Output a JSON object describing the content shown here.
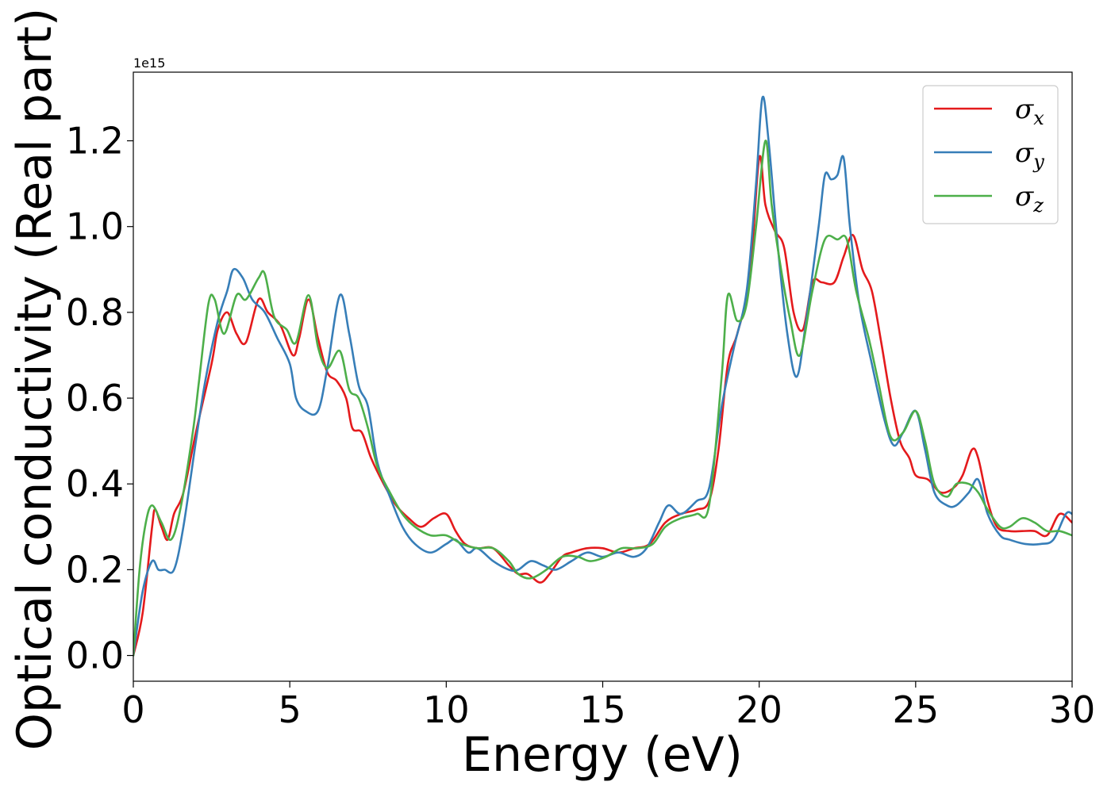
{
  "chart_data": {
    "type": "line",
    "title": "",
    "xlabel": "Energy (eV)",
    "ylabel": "Optical conductivity (Real part)",
    "y_offset_label": "1e15",
    "xlim": [
      0,
      30
    ],
    "ylim": [
      -0.06,
      1.36
    ],
    "xticks": [
      0,
      5,
      10,
      15,
      20,
      25,
      30
    ],
    "xtick_labels": [
      "0",
      "5",
      "10",
      "15",
      "20",
      "25",
      "30"
    ],
    "yticks": [
      0.0,
      0.2,
      0.4,
      0.6,
      0.8,
      1.0,
      1.2
    ],
    "ytick_labels": [
      "0.0",
      "0.2",
      "0.4",
      "0.6",
      "0.8",
      "1.0",
      "1.2"
    ],
    "grid": false,
    "legend_position": "top-right",
    "series": [
      {
        "name": "σx",
        "symbol": "σ",
        "subscript": "x",
        "color": "#e41a1c",
        "points": [
          [
            0,
            0
          ],
          [
            0.3,
            0.1
          ],
          [
            0.6,
            0.3
          ],
          [
            0.7,
            0.34
          ],
          [
            0.9,
            0.3
          ],
          [
            1.1,
            0.27
          ],
          [
            1.3,
            0.33
          ],
          [
            1.6,
            0.38
          ],
          [
            2.0,
            0.52
          ],
          [
            2.5,
            0.68
          ],
          [
            2.7,
            0.76
          ],
          [
            3.0,
            0.8
          ],
          [
            3.3,
            0.75
          ],
          [
            3.6,
            0.73
          ],
          [
            4.0,
            0.83
          ],
          [
            4.3,
            0.8
          ],
          [
            4.7,
            0.77
          ],
          [
            5.1,
            0.7
          ],
          [
            5.3,
            0.74
          ],
          [
            5.6,
            0.83
          ],
          [
            5.9,
            0.74
          ],
          [
            6.2,
            0.66
          ],
          [
            6.5,
            0.64
          ],
          [
            6.8,
            0.6
          ],
          [
            7.0,
            0.53
          ],
          [
            7.3,
            0.52
          ],
          [
            7.6,
            0.46
          ],
          [
            8.0,
            0.4
          ],
          [
            8.4,
            0.35
          ],
          [
            8.8,
            0.32
          ],
          [
            9.2,
            0.3
          ],
          [
            9.6,
            0.32
          ],
          [
            10.0,
            0.33
          ],
          [
            10.3,
            0.29
          ],
          [
            10.6,
            0.26
          ],
          [
            11.0,
            0.25
          ],
          [
            11.5,
            0.25
          ],
          [
            12.0,
            0.21
          ],
          [
            12.3,
            0.19
          ],
          [
            12.6,
            0.19
          ],
          [
            13.0,
            0.17
          ],
          [
            13.3,
            0.19
          ],
          [
            13.7,
            0.23
          ],
          [
            14.0,
            0.24
          ],
          [
            14.5,
            0.25
          ],
          [
            15.0,
            0.25
          ],
          [
            15.5,
            0.24
          ],
          [
            16.0,
            0.25
          ],
          [
            16.5,
            0.26
          ],
          [
            17.0,
            0.31
          ],
          [
            17.5,
            0.33
          ],
          [
            18.0,
            0.34
          ],
          [
            18.4,
            0.36
          ],
          [
            18.7,
            0.48
          ],
          [
            19.0,
            0.68
          ],
          [
            19.3,
            0.75
          ],
          [
            19.7,
            0.88
          ],
          [
            20.0,
            1.16
          ],
          [
            20.2,
            1.05
          ],
          [
            20.5,
            0.99
          ],
          [
            20.8,
            0.95
          ],
          [
            21.1,
            0.8
          ],
          [
            21.4,
            0.76
          ],
          [
            21.7,
            0.87
          ],
          [
            22.0,
            0.87
          ],
          [
            22.4,
            0.87
          ],
          [
            22.7,
            0.93
          ],
          [
            23.0,
            0.98
          ],
          [
            23.3,
            0.9
          ],
          [
            23.6,
            0.85
          ],
          [
            23.9,
            0.73
          ],
          [
            24.2,
            0.6
          ],
          [
            24.5,
            0.5
          ],
          [
            24.8,
            0.46
          ],
          [
            25.0,
            0.42
          ],
          [
            25.4,
            0.41
          ],
          [
            25.8,
            0.38
          ],
          [
            26.2,
            0.39
          ],
          [
            26.5,
            0.42
          ],
          [
            26.8,
            0.48
          ],
          [
            27.0,
            0.46
          ],
          [
            27.3,
            0.36
          ],
          [
            27.6,
            0.3
          ],
          [
            28.0,
            0.29
          ],
          [
            28.4,
            0.29
          ],
          [
            28.8,
            0.29
          ],
          [
            29.2,
            0.28
          ],
          [
            29.6,
            0.33
          ],
          [
            30.0,
            0.31
          ]
        ]
      },
      {
        "name": "σy",
        "symbol": "σ",
        "subscript": "y",
        "color": "#377eb8",
        "points": [
          [
            0,
            0
          ],
          [
            0.3,
            0.15
          ],
          [
            0.6,
            0.22
          ],
          [
            0.8,
            0.2
          ],
          [
            1.0,
            0.2
          ],
          [
            1.3,
            0.2
          ],
          [
            1.6,
            0.3
          ],
          [
            2.0,
            0.5
          ],
          [
            2.3,
            0.64
          ],
          [
            2.7,
            0.78
          ],
          [
            3.0,
            0.85
          ],
          [
            3.2,
            0.9
          ],
          [
            3.5,
            0.88
          ],
          [
            3.8,
            0.83
          ],
          [
            4.2,
            0.8
          ],
          [
            4.6,
            0.74
          ],
          [
            5.0,
            0.68
          ],
          [
            5.2,
            0.6
          ],
          [
            5.5,
            0.57
          ],
          [
            5.9,
            0.57
          ],
          [
            6.2,
            0.67
          ],
          [
            6.6,
            0.84
          ],
          [
            6.9,
            0.75
          ],
          [
            7.2,
            0.63
          ],
          [
            7.5,
            0.58
          ],
          [
            7.8,
            0.45
          ],
          [
            8.2,
            0.37
          ],
          [
            8.6,
            0.3
          ],
          [
            9.0,
            0.26
          ],
          [
            9.5,
            0.24
          ],
          [
            10.0,
            0.26
          ],
          [
            10.3,
            0.27
          ],
          [
            10.7,
            0.24
          ],
          [
            11.0,
            0.25
          ],
          [
            11.5,
            0.22
          ],
          [
            12.0,
            0.2
          ],
          [
            12.3,
            0.2
          ],
          [
            12.7,
            0.22
          ],
          [
            13.1,
            0.21
          ],
          [
            13.5,
            0.2
          ],
          [
            14.0,
            0.22
          ],
          [
            14.5,
            0.24
          ],
          [
            15.0,
            0.23
          ],
          [
            15.5,
            0.24
          ],
          [
            16.0,
            0.23
          ],
          [
            16.4,
            0.25
          ],
          [
            16.8,
            0.31
          ],
          [
            17.1,
            0.35
          ],
          [
            17.5,
            0.33
          ],
          [
            18.0,
            0.36
          ],
          [
            18.4,
            0.39
          ],
          [
            18.8,
            0.58
          ],
          [
            19.2,
            0.72
          ],
          [
            19.6,
            0.85
          ],
          [
            19.9,
            1.1
          ],
          [
            20.1,
            1.3
          ],
          [
            20.3,
            1.2
          ],
          [
            20.6,
            0.95
          ],
          [
            20.9,
            0.75
          ],
          [
            21.2,
            0.65
          ],
          [
            21.5,
            0.78
          ],
          [
            21.9,
            1.0
          ],
          [
            22.1,
            1.12
          ],
          [
            22.3,
            1.11
          ],
          [
            22.5,
            1.12
          ],
          [
            22.7,
            1.16
          ],
          [
            22.9,
            1.0
          ],
          [
            23.2,
            0.82
          ],
          [
            23.6,
            0.68
          ],
          [
            24.0,
            0.55
          ],
          [
            24.3,
            0.49
          ],
          [
            24.6,
            0.52
          ],
          [
            25.0,
            0.57
          ],
          [
            25.3,
            0.48
          ],
          [
            25.6,
            0.38
          ],
          [
            26.0,
            0.35
          ],
          [
            26.3,
            0.35
          ],
          [
            26.7,
            0.38
          ],
          [
            27.0,
            0.41
          ],
          [
            27.3,
            0.33
          ],
          [
            27.7,
            0.28
          ],
          [
            28.0,
            0.27
          ],
          [
            28.5,
            0.26
          ],
          [
            29.0,
            0.26
          ],
          [
            29.4,
            0.27
          ],
          [
            29.8,
            0.33
          ],
          [
            30.0,
            0.33
          ]
        ]
      },
      {
        "name": "σz",
        "symbol": "σ",
        "subscript": "z",
        "color": "#4daf4a",
        "points": [
          [
            0,
            0
          ],
          [
            0.2,
            0.2
          ],
          [
            0.4,
            0.31
          ],
          [
            0.6,
            0.35
          ],
          [
            0.9,
            0.31
          ],
          [
            1.2,
            0.27
          ],
          [
            1.5,
            0.34
          ],
          [
            1.9,
            0.52
          ],
          [
            2.1,
            0.64
          ],
          [
            2.4,
            0.82
          ],
          [
            2.6,
            0.83
          ],
          [
            2.9,
            0.75
          ],
          [
            3.3,
            0.84
          ],
          [
            3.6,
            0.83
          ],
          [
            4.0,
            0.88
          ],
          [
            4.2,
            0.89
          ],
          [
            4.5,
            0.79
          ],
          [
            4.9,
            0.76
          ],
          [
            5.2,
            0.73
          ],
          [
            5.6,
            0.84
          ],
          [
            5.9,
            0.72
          ],
          [
            6.2,
            0.67
          ],
          [
            6.6,
            0.71
          ],
          [
            6.9,
            0.62
          ],
          [
            7.2,
            0.6
          ],
          [
            7.5,
            0.53
          ],
          [
            7.8,
            0.44
          ],
          [
            8.2,
            0.38
          ],
          [
            8.6,
            0.33
          ],
          [
            9.0,
            0.3
          ],
          [
            9.5,
            0.28
          ],
          [
            10.0,
            0.28
          ],
          [
            10.5,
            0.26
          ],
          [
            11.0,
            0.25
          ],
          [
            11.5,
            0.25
          ],
          [
            12.0,
            0.22
          ],
          [
            12.3,
            0.19
          ],
          [
            12.7,
            0.18
          ],
          [
            13.2,
            0.2
          ],
          [
            13.7,
            0.23
          ],
          [
            14.2,
            0.23
          ],
          [
            14.6,
            0.22
          ],
          [
            15.1,
            0.23
          ],
          [
            15.6,
            0.25
          ],
          [
            16.1,
            0.25
          ],
          [
            16.6,
            0.26
          ],
          [
            17.0,
            0.3
          ],
          [
            17.5,
            0.32
          ],
          [
            18.0,
            0.33
          ],
          [
            18.4,
            0.35
          ],
          [
            18.8,
            0.65
          ],
          [
            19.0,
            0.84
          ],
          [
            19.3,
            0.78
          ],
          [
            19.6,
            0.82
          ],
          [
            19.9,
            1.0
          ],
          [
            20.2,
            1.2
          ],
          [
            20.4,
            1.05
          ],
          [
            20.7,
            0.9
          ],
          [
            21.0,
            0.78
          ],
          [
            21.3,
            0.7
          ],
          [
            21.7,
            0.85
          ],
          [
            22.1,
            0.97
          ],
          [
            22.5,
            0.97
          ],
          [
            22.8,
            0.97
          ],
          [
            23.1,
            0.85
          ],
          [
            23.5,
            0.74
          ],
          [
            23.8,
            0.64
          ],
          [
            24.2,
            0.51
          ],
          [
            24.6,
            0.52
          ],
          [
            25.0,
            0.57
          ],
          [
            25.3,
            0.5
          ],
          [
            25.6,
            0.4
          ],
          [
            26.0,
            0.37
          ],
          [
            26.3,
            0.4
          ],
          [
            26.7,
            0.4
          ],
          [
            27.0,
            0.38
          ],
          [
            27.3,
            0.34
          ],
          [
            27.7,
            0.3
          ],
          [
            28.0,
            0.3
          ],
          [
            28.4,
            0.32
          ],
          [
            28.8,
            0.31
          ],
          [
            29.2,
            0.29
          ],
          [
            29.6,
            0.29
          ],
          [
            30.0,
            0.28
          ]
        ]
      }
    ]
  }
}
